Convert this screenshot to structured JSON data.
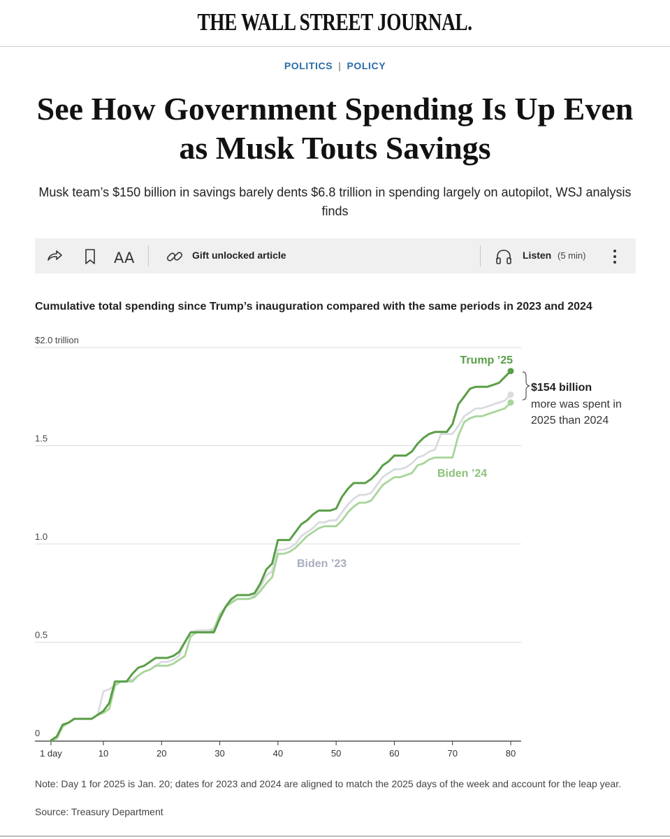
{
  "masthead": {
    "title": "THE WALL STREET JOURNAL."
  },
  "section": {
    "primary": "POLITICS",
    "separator": "|",
    "secondary": "POLICY"
  },
  "headline": "See How Government Spending Is Up Even as Musk Touts Savings",
  "dek": "Musk team’s $150 billion in savings barely dents $6.8 trillion in spending largely on autopilot, WSJ analysis finds",
  "toolbar": {
    "share_icon": "share-arrow-icon",
    "bookmark_icon": "bookmark-icon",
    "text_size_label": "AA",
    "gift_icon": "link-icon",
    "gift_label": "Gift unlocked article",
    "listen_icon": "headphones-icon",
    "listen_label": "Listen",
    "listen_duration": "(5 min)",
    "more_icon": "more-vertical-icon"
  },
  "chart_data": {
    "type": "line",
    "title": "Cumulative total spending since Trump’s inauguration compared with the same periods in 2023 and 2024",
    "xlabel": "",
    "ylabel": "",
    "xlim": [
      1,
      80
    ],
    "ylim": [
      0,
      2.0
    ],
    "grid": true,
    "x_ticks": [
      {
        "value": 1,
        "label": "1 day"
      },
      {
        "value": 10,
        "label": "10"
      },
      {
        "value": 20,
        "label": "20"
      },
      {
        "value": 30,
        "label": "30"
      },
      {
        "value": 40,
        "label": "40"
      },
      {
        "value": 50,
        "label": "50"
      },
      {
        "value": 60,
        "label": "60"
      },
      {
        "value": 70,
        "label": "70"
      },
      {
        "value": 80,
        "label": "80"
      }
    ],
    "y_ticks": [
      {
        "value": 0,
        "label": "0"
      },
      {
        "value": 0.5,
        "label": "0.5"
      },
      {
        "value": 1.0,
        "label": "1.0"
      },
      {
        "value": 1.5,
        "label": "1.5"
      },
      {
        "value": 2.0,
        "label": "$2.0 trillion"
      }
    ],
    "series": [
      {
        "name": "Biden ’23",
        "color": "#d9dbe0",
        "label_color": "#a9adbf",
        "end_marker": true,
        "points": [
          [
            1,
            0
          ],
          [
            2,
            0.02
          ],
          [
            3,
            0.08
          ],
          [
            4,
            0.09
          ],
          [
            5,
            0.11
          ],
          [
            6,
            0.11
          ],
          [
            7,
            0.11
          ],
          [
            8,
            0.11
          ],
          [
            9,
            0.13
          ],
          [
            10,
            0.25
          ],
          [
            11,
            0.26
          ],
          [
            12,
            0.28
          ],
          [
            13,
            0.3
          ],
          [
            14,
            0.3
          ],
          [
            15,
            0.31
          ],
          [
            16,
            0.33
          ],
          [
            17,
            0.35
          ],
          [
            18,
            0.36
          ],
          [
            19,
            0.38
          ],
          [
            20,
            0.4
          ],
          [
            21,
            0.4
          ],
          [
            22,
            0.41
          ],
          [
            23,
            0.43
          ],
          [
            24,
            0.5
          ],
          [
            25,
            0.55
          ],
          [
            26,
            0.56
          ],
          [
            27,
            0.56
          ],
          [
            28,
            0.56
          ],
          [
            29,
            0.57
          ],
          [
            30,
            0.64
          ],
          [
            31,
            0.68
          ],
          [
            32,
            0.71
          ],
          [
            33,
            0.72
          ],
          [
            34,
            0.72
          ],
          [
            35,
            0.72
          ],
          [
            36,
            0.74
          ],
          [
            37,
            0.78
          ],
          [
            38,
            0.84
          ],
          [
            39,
            0.86
          ],
          [
            40,
            0.97
          ],
          [
            41,
            0.97
          ],
          [
            42,
            0.98
          ],
          [
            43,
            1.0
          ],
          [
            44,
            1.04
          ],
          [
            45,
            1.06
          ],
          [
            46,
            1.08
          ],
          [
            47,
            1.11
          ],
          [
            48,
            1.11
          ],
          [
            49,
            1.12
          ],
          [
            50,
            1.12
          ],
          [
            51,
            1.16
          ],
          [
            52,
            1.2
          ],
          [
            53,
            1.23
          ],
          [
            54,
            1.25
          ],
          [
            55,
            1.25
          ],
          [
            56,
            1.26
          ],
          [
            57,
            1.3
          ],
          [
            58,
            1.34
          ],
          [
            59,
            1.36
          ],
          [
            60,
            1.38
          ],
          [
            61,
            1.38
          ],
          [
            62,
            1.39
          ],
          [
            63,
            1.41
          ],
          [
            64,
            1.44
          ],
          [
            65,
            1.45
          ],
          [
            66,
            1.47
          ],
          [
            67,
            1.48
          ],
          [
            68,
            1.56
          ],
          [
            69,
            1.56
          ],
          [
            70,
            1.56
          ],
          [
            71,
            1.6
          ],
          [
            72,
            1.65
          ],
          [
            73,
            1.67
          ],
          [
            74,
            1.69
          ],
          [
            75,
            1.69
          ],
          [
            76,
            1.7
          ],
          [
            77,
            1.71
          ],
          [
            78,
            1.72
          ],
          [
            79,
            1.73
          ],
          [
            80,
            1.76
          ]
        ]
      },
      {
        "name": "Biden ’24",
        "color": "#a8d59a",
        "label_color": "#8cc17c",
        "end_marker": true,
        "points": [
          [
            1,
            0
          ],
          [
            2,
            0.01
          ],
          [
            3,
            0.07
          ],
          [
            4,
            0.09
          ],
          [
            5,
            0.11
          ],
          [
            6,
            0.11
          ],
          [
            7,
            0.11
          ],
          [
            8,
            0.11
          ],
          [
            9,
            0.13
          ],
          [
            10,
            0.14
          ],
          [
            11,
            0.16
          ],
          [
            12,
            0.28
          ],
          [
            13,
            0.3
          ],
          [
            14,
            0.3
          ],
          [
            15,
            0.3
          ],
          [
            16,
            0.33
          ],
          [
            17,
            0.35
          ],
          [
            18,
            0.36
          ],
          [
            19,
            0.38
          ],
          [
            20,
            0.38
          ],
          [
            21,
            0.38
          ],
          [
            22,
            0.39
          ],
          [
            23,
            0.41
          ],
          [
            24,
            0.43
          ],
          [
            25,
            0.53
          ],
          [
            26,
            0.55
          ],
          [
            27,
            0.55
          ],
          [
            28,
            0.55
          ],
          [
            29,
            0.56
          ],
          [
            30,
            0.64
          ],
          [
            31,
            0.68
          ],
          [
            32,
            0.7
          ],
          [
            33,
            0.72
          ],
          [
            34,
            0.72
          ],
          [
            35,
            0.72
          ],
          [
            36,
            0.73
          ],
          [
            37,
            0.76
          ],
          [
            38,
            0.8
          ],
          [
            39,
            0.83
          ],
          [
            40,
            0.95
          ],
          [
            41,
            0.95
          ],
          [
            42,
            0.96
          ],
          [
            43,
            0.98
          ],
          [
            44,
            1.01
          ],
          [
            45,
            1.04
          ],
          [
            46,
            1.06
          ],
          [
            47,
            1.08
          ],
          [
            48,
            1.09
          ],
          [
            49,
            1.09
          ],
          [
            50,
            1.09
          ],
          [
            51,
            1.12
          ],
          [
            52,
            1.16
          ],
          [
            53,
            1.19
          ],
          [
            54,
            1.21
          ],
          [
            55,
            1.21
          ],
          [
            56,
            1.22
          ],
          [
            57,
            1.26
          ],
          [
            58,
            1.3
          ],
          [
            59,
            1.32
          ],
          [
            60,
            1.34
          ],
          [
            61,
            1.34
          ],
          [
            62,
            1.35
          ],
          [
            63,
            1.36
          ],
          [
            64,
            1.4
          ],
          [
            65,
            1.41
          ],
          [
            66,
            1.43
          ],
          [
            67,
            1.44
          ],
          [
            68,
            1.44
          ],
          [
            69,
            1.44
          ],
          [
            70,
            1.44
          ],
          [
            71,
            1.55
          ],
          [
            72,
            1.62
          ],
          [
            73,
            1.64
          ],
          [
            74,
            1.65
          ],
          [
            75,
            1.65
          ],
          [
            76,
            1.66
          ],
          [
            77,
            1.67
          ],
          [
            78,
            1.68
          ],
          [
            79,
            1.69
          ],
          [
            80,
            1.72
          ]
        ]
      },
      {
        "name": "Trump ’25",
        "color": "#5a9e48",
        "label_color": "#5a9e48",
        "end_marker": true,
        "points": [
          [
            1,
            0
          ],
          [
            2,
            0.02
          ],
          [
            3,
            0.08
          ],
          [
            4,
            0.09
          ],
          [
            5,
            0.11
          ],
          [
            6,
            0.11
          ],
          [
            7,
            0.11
          ],
          [
            8,
            0.11
          ],
          [
            9,
            0.13
          ],
          [
            10,
            0.15
          ],
          [
            11,
            0.19
          ],
          [
            12,
            0.3
          ],
          [
            13,
            0.3
          ],
          [
            14,
            0.3
          ],
          [
            15,
            0.34
          ],
          [
            16,
            0.37
          ],
          [
            17,
            0.38
          ],
          [
            18,
            0.4
          ],
          [
            19,
            0.42
          ],
          [
            20,
            0.42
          ],
          [
            21,
            0.42
          ],
          [
            22,
            0.43
          ],
          [
            23,
            0.45
          ],
          [
            24,
            0.5
          ],
          [
            25,
            0.55
          ],
          [
            26,
            0.55
          ],
          [
            27,
            0.55
          ],
          [
            28,
            0.55
          ],
          [
            29,
            0.55
          ],
          [
            30,
            0.62
          ],
          [
            31,
            0.68
          ],
          [
            32,
            0.72
          ],
          [
            33,
            0.74
          ],
          [
            34,
            0.74
          ],
          [
            35,
            0.74
          ],
          [
            36,
            0.75
          ],
          [
            37,
            0.8
          ],
          [
            38,
            0.87
          ],
          [
            39,
            0.9
          ],
          [
            40,
            1.02
          ],
          [
            41,
            1.02
          ],
          [
            42,
            1.02
          ],
          [
            43,
            1.06
          ],
          [
            44,
            1.1
          ],
          [
            45,
            1.12
          ],
          [
            46,
            1.15
          ],
          [
            47,
            1.17
          ],
          [
            48,
            1.17
          ],
          [
            49,
            1.17
          ],
          [
            50,
            1.18
          ],
          [
            51,
            1.24
          ],
          [
            52,
            1.28
          ],
          [
            53,
            1.31
          ],
          [
            54,
            1.31
          ],
          [
            55,
            1.31
          ],
          [
            56,
            1.33
          ],
          [
            57,
            1.36
          ],
          [
            58,
            1.4
          ],
          [
            59,
            1.42
          ],
          [
            60,
            1.45
          ],
          [
            61,
            1.45
          ],
          [
            62,
            1.45
          ],
          [
            63,
            1.47
          ],
          [
            64,
            1.51
          ],
          [
            65,
            1.54
          ],
          [
            66,
            1.56
          ],
          [
            67,
            1.57
          ],
          [
            68,
            1.57
          ],
          [
            69,
            1.57
          ],
          [
            70,
            1.61
          ],
          [
            71,
            1.71
          ],
          [
            72,
            1.75
          ],
          [
            73,
            1.79
          ],
          [
            74,
            1.8
          ],
          [
            75,
            1.8
          ],
          [
            76,
            1.8
          ],
          [
            77,
            1.81
          ],
          [
            78,
            1.82
          ],
          [
            79,
            1.85
          ],
          [
            80,
            1.88
          ]
        ]
      }
    ],
    "annotation": {
      "bold": "$154 billion",
      "line1": "more was spent in",
      "line2": "2025 than 2024"
    }
  },
  "note": "Note: Day 1 for 2025 is Jan. 20; dates for 2023 and 2024 are aligned to match the 2025 days of the week and account for the leap year.",
  "source": "Source: Treasury Department"
}
